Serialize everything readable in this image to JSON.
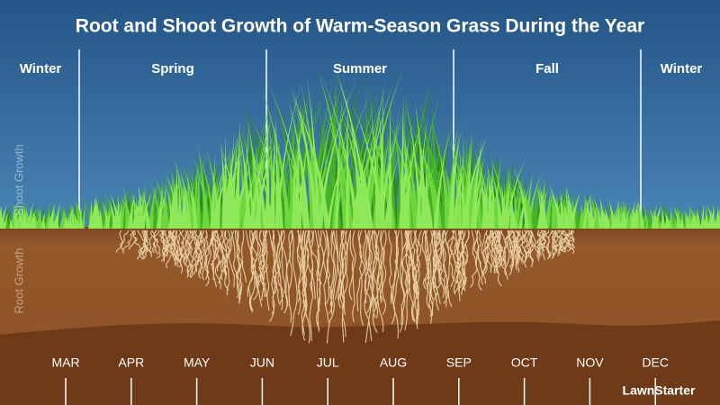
{
  "title": "Root and Shoot Growth of Warm-Season Grass During the Year",
  "seasons": [
    "Winter",
    "Spring",
    "Summer",
    "Fall",
    "Winter"
  ],
  "side_labels": {
    "shoot": "Shoot Growth",
    "root": "Root Growth"
  },
  "months": [
    "MAR",
    "APR",
    "MAY",
    "JUN",
    "JUL",
    "AUG",
    "SEP",
    "OCT",
    "NOV",
    "DEC"
  ],
  "brand": "LawnStarter"
}
